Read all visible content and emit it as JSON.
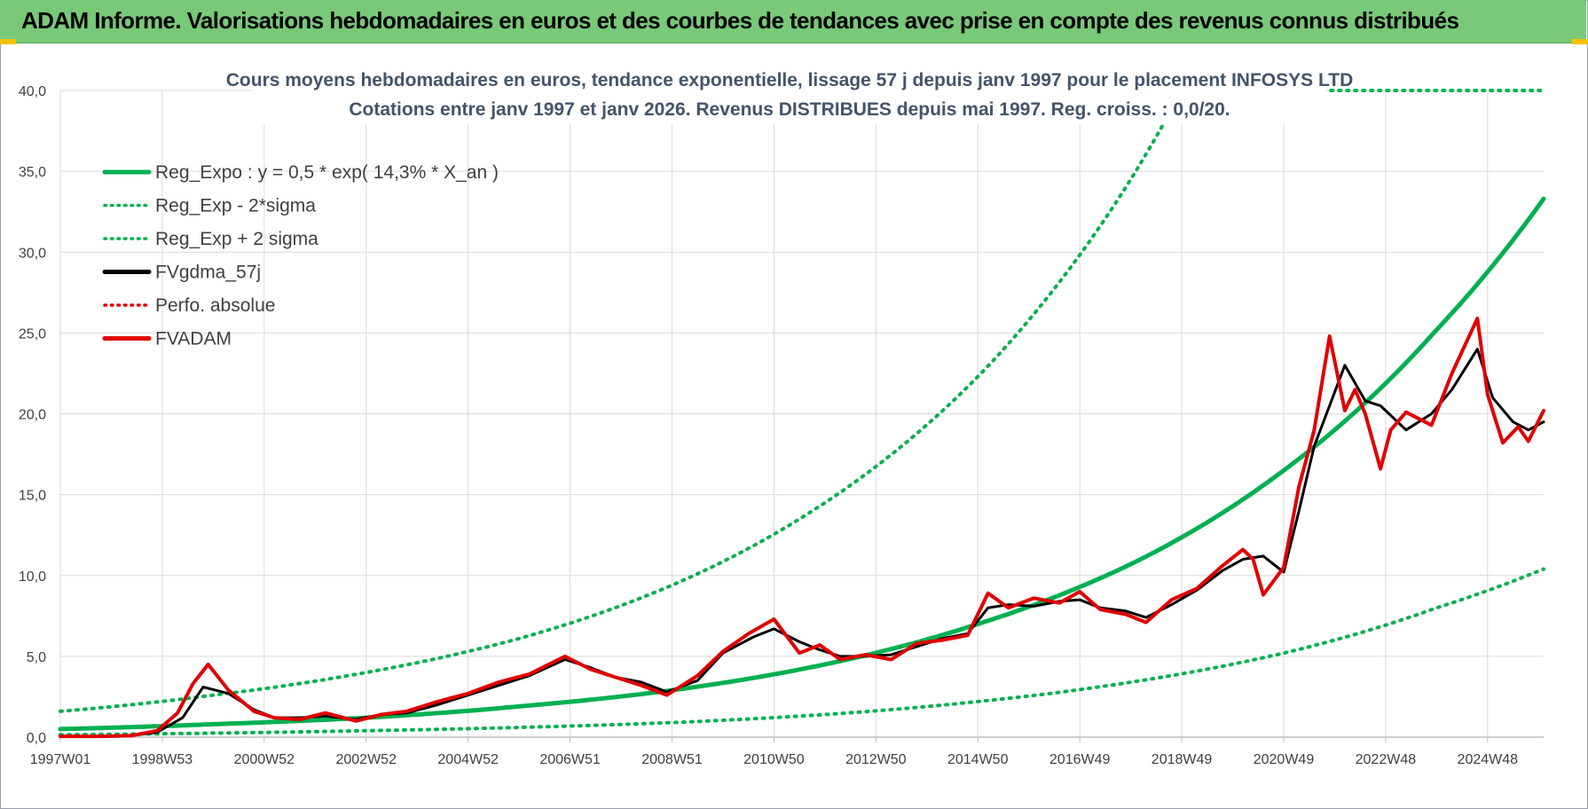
{
  "banner": {
    "title": "ADAM Informe. Valorisations hebdomadaires en euros et des courbes de tendances avec prise en compte des revenus connus distribués"
  },
  "chart_data": {
    "type": "line",
    "title_lines": [
      "Cours moyens hebdomadaires en euros, tendance exponentielle, lissage 57 j depuis janv 1997  pour le placement INFOSYS LTD",
      "Cotations entre janv 1997 et janv 2026. Revenus DISTRIBUES depuis mai 1997.  Reg. croiss. : 0,0/20."
    ],
    "xlabel": "",
    "ylabel": "",
    "ylim": [
      0,
      40
    ],
    "yticks": [
      "0,0",
      "5,0",
      "10,0",
      "15,0",
      "20,0",
      "25,0",
      "30,0",
      "35,0",
      "40,0"
    ],
    "xlim": [
      1997.0,
      2026.1
    ],
    "xticks": [
      {
        "label": "1997W01",
        "t": 1997.0
      },
      {
        "label": "1998W53",
        "t": 1999.0
      },
      {
        "label": "2000W52",
        "t": 2001.0
      },
      {
        "label": "2002W52",
        "t": 2003.0
      },
      {
        "label": "2004W52",
        "t": 2005.0
      },
      {
        "label": "2006W51",
        "t": 2007.0
      },
      {
        "label": "2008W51",
        "t": 2009.0
      },
      {
        "label": "2010W50",
        "t": 2011.0
      },
      {
        "label": "2012W50",
        "t": 2013.0
      },
      {
        "label": "2014W50",
        "t": 2015.0
      },
      {
        "label": "2016W49",
        "t": 2017.0
      },
      {
        "label": "2018W49",
        "t": 2019.0
      },
      {
        "label": "2020W49",
        "t": 2021.0
      },
      {
        "label": "2022W48",
        "t": 2023.0
      },
      {
        "label": "2024W48",
        "t": 2025.0
      }
    ],
    "grid": true,
    "legend_position": "top-left",
    "colors": {
      "green": "#00b050",
      "black": "#000000",
      "red": "#e00000"
    },
    "legend": [
      {
        "key": "reg",
        "label": "Reg_Expo : y = 0,5 * exp( 14,3% *  X_an )",
        "style": "solid",
        "color": "#00b050"
      },
      {
        "key": "low",
        "label": "Reg_Exp - 2*sigma",
        "style": "dotted",
        "color": "#00b050"
      },
      {
        "key": "high",
        "label": "Reg_Exp + 2 sigma",
        "style": "dotted",
        "color": "#00b050"
      },
      {
        "key": "gdma",
        "label": "FVgdma_57j",
        "style": "solid",
        "color": "#000000"
      },
      {
        "key": "perfo",
        "label": "Perfo. absolue",
        "style": "dotted",
        "color": "#e00000"
      },
      {
        "key": "adam",
        "label": "FVADAM",
        "style": "solid",
        "color": "#e00000"
      }
    ],
    "series": [
      {
        "name": "Reg_Expo : y = 0,5 * exp( 14,3% *  X_an )",
        "x": [
          1997.0,
          2000.0,
          2003.0,
          2006.0,
          2009.0,
          2012.0,
          2015.0,
          2018.0,
          2021.0,
          2024.0,
          2026.1
        ],
        "y": [
          0.5,
          0.8,
          1.2,
          1.9,
          2.9,
          4.5,
          7.0,
          10.7,
          16.5,
          25.2,
          33.3
        ]
      },
      {
        "name": "Reg_Exp - 2*sigma",
        "x": [
          1997.0,
          2000.0,
          2003.0,
          2006.0,
          2009.0,
          2012.0,
          2015.0,
          2018.0,
          2021.0,
          2024.0,
          2026.1
        ],
        "y": [
          0.15,
          0.25,
          0.4,
          0.6,
          0.9,
          1.4,
          2.2,
          3.4,
          5.2,
          8.0,
          10.4
        ]
      },
      {
        "name": "Reg_Exp + 2 sigma",
        "x": [
          1997.0,
          2000.0,
          2003.0,
          2006.0,
          2009.0,
          2012.0,
          2015.0,
          2018.0,
          2019.0,
          2026.1
        ],
        "y": [
          1.6,
          2.6,
          4.0,
          6.1,
          9.4,
          14.5,
          22.3,
          34.5,
          40.0,
          40.0
        ]
      },
      {
        "name": "FVgdma_57j",
        "x": [
          1997.0,
          1997.8,
          1998.4,
          1998.9,
          1999.4,
          1999.8,
          2000.3,
          2000.8,
          2001.2,
          2001.7,
          2002.2,
          2002.8,
          2003.3,
          2003.8,
          2004.4,
          2005.0,
          2005.6,
          2006.2,
          2006.9,
          2007.4,
          2007.9,
          2008.4,
          2008.9,
          2009.5,
          2010.0,
          2010.6,
          2011.0,
          2011.5,
          2011.9,
          2012.3,
          2012.8,
          2013.3,
          2013.8,
          2014.3,
          2014.8,
          2015.2,
          2015.6,
          2016.1,
          2016.6,
          2017.0,
          2017.4,
          2017.9,
          2018.3,
          2018.8,
          2019.3,
          2019.8,
          2020.2,
          2020.6,
          2021.0,
          2021.3,
          2021.6,
          2021.9,
          2022.2,
          2022.6,
          2022.9,
          2023.4,
          2023.9,
          2024.3,
          2024.8,
          2025.1,
          2025.5,
          2025.8,
          2026.1
        ],
        "y": [
          0.05,
          0.05,
          0.1,
          0.3,
          1.2,
          3.1,
          2.7,
          1.7,
          1.2,
          1.2,
          1.3,
          1.1,
          1.4,
          1.5,
          2.0,
          2.6,
          3.2,
          3.8,
          4.8,
          4.3,
          3.7,
          3.4,
          2.8,
          3.5,
          5.2,
          6.2,
          6.7,
          5.9,
          5.4,
          5.0,
          5.0,
          5.1,
          5.6,
          6.1,
          6.4,
          8.0,
          8.2,
          8.1,
          8.4,
          8.5,
          8.0,
          7.8,
          7.4,
          8.2,
          9.1,
          10.3,
          11.0,
          11.2,
          10.2,
          14.0,
          18.0,
          20.5,
          23.0,
          20.8,
          20.5,
          19.0,
          20.0,
          21.5,
          24.0,
          21.0,
          19.5,
          19.0,
          19.5
        ]
      },
      {
        "name": "FVADAM",
        "x": [
          1997.0,
          1997.8,
          1998.4,
          1998.9,
          1999.3,
          1999.6,
          1999.9,
          2000.3,
          2000.8,
          2001.2,
          2001.7,
          2002.2,
          2002.8,
          2003.3,
          2003.8,
          2004.4,
          2005.0,
          2005.6,
          2006.2,
          2006.9,
          2007.4,
          2007.9,
          2008.4,
          2008.9,
          2009.5,
          2010.0,
          2010.5,
          2011.0,
          2011.5,
          2011.9,
          2012.3,
          2012.8,
          2013.3,
          2013.8,
          2014.3,
          2014.8,
          2015.2,
          2015.6,
          2016.1,
          2016.6,
          2017.0,
          2017.4,
          2017.9,
          2018.3,
          2018.8,
          2019.3,
          2019.8,
          2020.2,
          2020.4,
          2020.6,
          2021.0,
          2021.3,
          2021.6,
          2021.9,
          2022.2,
          2022.4,
          2022.6,
          2022.9,
          2023.1,
          2023.4,
          2023.9,
          2024.3,
          2024.8,
          2025.0,
          2025.3,
          2025.6,
          2025.8,
          2026.1
        ],
        "y": [
          0.05,
          0.05,
          0.1,
          0.4,
          1.5,
          3.3,
          4.5,
          2.9,
          1.6,
          1.2,
          1.1,
          1.5,
          1.0,
          1.4,
          1.6,
          2.2,
          2.7,
          3.4,
          3.9,
          5.0,
          4.2,
          3.7,
          3.2,
          2.6,
          3.8,
          5.3,
          6.4,
          7.3,
          5.2,
          5.7,
          4.8,
          5.1,
          4.8,
          5.8,
          6.0,
          6.3,
          8.9,
          8.0,
          8.6,
          8.3,
          9.0,
          7.9,
          7.6,
          7.1,
          8.5,
          9.2,
          10.6,
          11.6,
          11.0,
          8.8,
          10.5,
          15.5,
          19.0,
          24.8,
          20.2,
          21.5,
          20.0,
          16.6,
          19.0,
          20.1,
          19.3,
          22.5,
          25.9,
          21.2,
          18.2,
          19.2,
          18.3,
          20.2
        ]
      }
    ]
  }
}
